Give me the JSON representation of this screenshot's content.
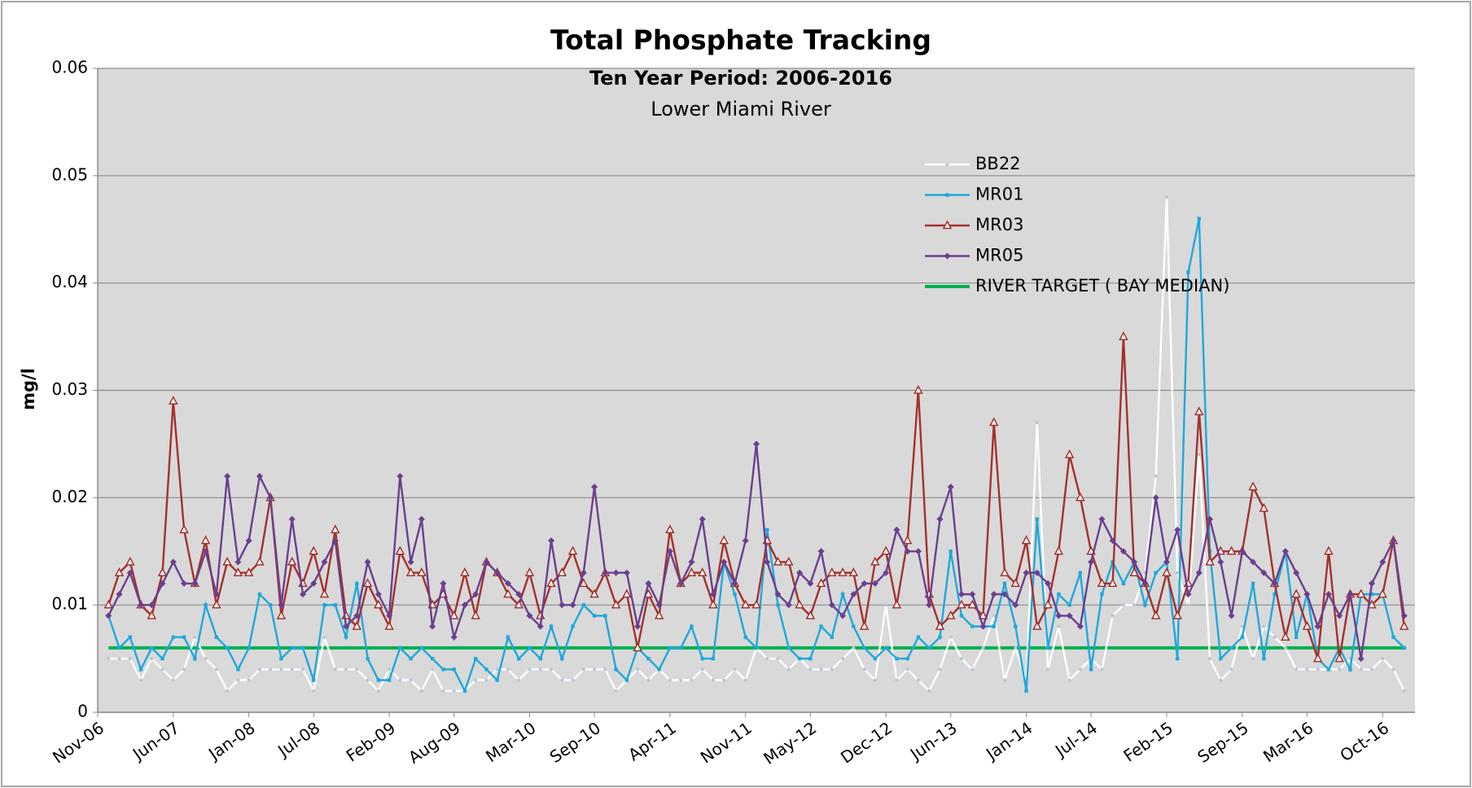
{
  "chart_data": {
    "type": "line",
    "title": "Total Phosphate Tracking",
    "subtitle": "Ten Year Period: 2006-2016",
    "subtitle2": "Lower Miami River",
    "ylabel": "mg/l",
    "ylim": [
      0,
      0.06
    ],
    "yticks": [
      0,
      0.01,
      0.02,
      0.03,
      0.04,
      0.05,
      0.06
    ],
    "grid": true,
    "legend": "top-right",
    "categories": [
      "Nov-06",
      null,
      null,
      null,
      null,
      null,
      null,
      "Jun-07",
      null,
      null,
      null,
      null,
      null,
      null,
      "Jan-08",
      null,
      null,
      null,
      null,
      null,
      "Jul-08",
      null,
      null,
      null,
      null,
      null,
      null,
      "Feb-09",
      null,
      null,
      null,
      null,
      null,
      "Aug-09",
      null,
      null,
      null,
      null,
      null,
      null,
      "Mar-10",
      null,
      null,
      null,
      null,
      null,
      "Sep-10",
      null,
      null,
      null,
      null,
      null,
      null,
      "Apr-11",
      null,
      null,
      null,
      null,
      null,
      null,
      "Nov-11",
      null,
      null,
      null,
      null,
      null,
      "May-12",
      null,
      null,
      null,
      null,
      null,
      null,
      "Dec-12",
      null,
      null,
      null,
      null,
      null,
      "Jun-13",
      null,
      null,
      null,
      null,
      null,
      null,
      "Jan-14",
      null,
      null,
      null,
      null,
      null,
      "Jul-14",
      null,
      null,
      null,
      null,
      null,
      null,
      "Feb-15",
      null,
      null,
      null,
      null,
      null,
      null,
      "Sep-15",
      null,
      null,
      null,
      null,
      null,
      "Mar-16",
      null,
      null,
      null,
      null,
      null,
      null,
      "Oct-16",
      null,
      null,
      null
    ],
    "series": [
      {
        "name": "BB22",
        "color": "#ffffff",
        "marker": "dot",
        "values": [
          null,
          0.005,
          0.005,
          0.005,
          0.003,
          0.005,
          0.004,
          0.003,
          0.004,
          0.007,
          0.005,
          0.004,
          0.002,
          0.003,
          0.003,
          0.004,
          0.004,
          0.004,
          0.004,
          0.004,
          0.002,
          0.007,
          0.004,
          0.004,
          0.004,
          0.003,
          0.002,
          0.004,
          0.003,
          0.003,
          0.002,
          0.004,
          0.002,
          0.002,
          0.002,
          0.003,
          0.003,
          0.004,
          0.004,
          0.003,
          0.004,
          0.004,
          0.004,
          0.003,
          0.003,
          0.004,
          0.004,
          0.004,
          0.002,
          0.003,
          0.004,
          0.003,
          0.004,
          0.003,
          0.003,
          0.003,
          0.004,
          0.003,
          0.003,
          0.004,
          0.003,
          0.006,
          0.005,
          0.005,
          0.004,
          0.005,
          0.004,
          0.004,
          0.004,
          0.005,
          0.006,
          0.004,
          0.003,
          0.01,
          0.003,
          0.004,
          0.003,
          0.002,
          0.004,
          0.007,
          0.005,
          0.004,
          0.006,
          0.009,
          0.003,
          0.006,
          0.003,
          0.027,
          0.004,
          0.008,
          0.003,
          0.004,
          0.005,
          0.004,
          0.009,
          0.01,
          0.01,
          0.013,
          0.022,
          0.048,
          0.013,
          0.01,
          0.024,
          0.005,
          0.003,
          0.004,
          0.008,
          0.005,
          0.008,
          0.007,
          0.006,
          0.004,
          0.004,
          0.004,
          0.004,
          0.004,
          0.005,
          0.004,
          0.004,
          0.005,
          0.004,
          0.002,
          null
        ]
      },
      {
        "name": "MR01",
        "color": "#1fa8dc",
        "marker": "square",
        "values": [
          null,
          0.009,
          0.006,
          0.007,
          0.004,
          0.006,
          0.005,
          0.007,
          0.007,
          0.005,
          0.01,
          0.007,
          0.006,
          0.004,
          0.006,
          0.011,
          0.01,
          0.005,
          0.006,
          0.006,
          0.003,
          0.01,
          0.01,
          0.007,
          0.012,
          0.005,
          0.003,
          0.003,
          0.006,
          0.005,
          0.006,
          0.005,
          0.004,
          0.004,
          0.002,
          0.005,
          0.004,
          0.003,
          0.007,
          0.005,
          0.006,
          0.005,
          0.008,
          0.005,
          0.008,
          0.01,
          0.009,
          0.009,
          0.004,
          0.003,
          0.006,
          0.005,
          0.004,
          0.006,
          0.006,
          0.008,
          0.005,
          0.005,
          0.014,
          0.011,
          0.007,
          0.006,
          0.017,
          0.01,
          0.006,
          0.005,
          0.005,
          0.008,
          0.007,
          0.011,
          0.008,
          0.006,
          0.005,
          0.006,
          0.005,
          0.005,
          0.007,
          0.006,
          0.007,
          0.015,
          0.009,
          0.008,
          0.008,
          0.008,
          0.012,
          0.008,
          0.002,
          0.018,
          0.006,
          0.011,
          0.01,
          0.013,
          0.004,
          0.011,
          0.014,
          0.012,
          0.014,
          0.01,
          0.013,
          0.014,
          0.005,
          0.041,
          0.046,
          0.015,
          0.005,
          0.006,
          0.007,
          0.012,
          0.005,
          0.011,
          0.015,
          0.007,
          0.011,
          0.005,
          0.004,
          0.006,
          0.004,
          0.011,
          0.011,
          0.011,
          0.007,
          0.006,
          null
        ]
      },
      {
        "name": "MR03",
        "color": "#a5302b",
        "marker": "triangle",
        "values": [
          null,
          0.01,
          0.013,
          0.014,
          0.01,
          0.009,
          0.013,
          0.029,
          0.017,
          0.012,
          0.016,
          0.01,
          0.014,
          0.013,
          0.013,
          0.014,
          0.02,
          0.009,
          0.014,
          0.012,
          0.015,
          0.011,
          0.017,
          0.009,
          0.008,
          0.012,
          0.01,
          0.008,
          0.015,
          0.013,
          0.013,
          0.01,
          0.011,
          0.009,
          0.013,
          0.009,
          0.014,
          0.013,
          0.011,
          0.01,
          0.013,
          0.009,
          0.012,
          0.013,
          0.015,
          0.012,
          0.011,
          0.013,
          0.01,
          0.011,
          0.006,
          0.011,
          0.009,
          0.017,
          0.012,
          0.013,
          0.013,
          0.01,
          0.016,
          0.012,
          0.01,
          0.01,
          0.016,
          0.014,
          0.014,
          0.01,
          0.009,
          0.012,
          0.013,
          0.013,
          0.013,
          0.008,
          0.014,
          0.015,
          0.01,
          0.016,
          0.03,
          0.011,
          0.008,
          0.009,
          0.01,
          0.01,
          0.009,
          0.027,
          0.013,
          0.012,
          0.016,
          0.008,
          0.01,
          0.015,
          0.024,
          0.02,
          0.015,
          0.012,
          0.012,
          0.035,
          0.013,
          0.012,
          0.009,
          0.013,
          0.009,
          0.012,
          0.028,
          0.014,
          0.015,
          0.015,
          0.015,
          0.021,
          0.019,
          0.012,
          0.007,
          0.011,
          0.008,
          0.005,
          0.015,
          0.005,
          0.011,
          0.011,
          0.01,
          0.011,
          0.016,
          0.008,
          null
        ]
      },
      {
        "name": "MR05",
        "color": "#6a3f8f",
        "marker": "diamond",
        "values": [
          null,
          0.009,
          0.011,
          0.013,
          0.01,
          0.01,
          0.012,
          0.014,
          0.012,
          0.012,
          0.015,
          0.011,
          0.022,
          0.014,
          0.016,
          0.022,
          0.02,
          0.01,
          0.018,
          0.011,
          0.012,
          0.014,
          0.016,
          0.008,
          0.009,
          0.014,
          0.011,
          0.009,
          0.022,
          0.014,
          0.018,
          0.008,
          0.012,
          0.007,
          0.01,
          0.011,
          0.014,
          0.013,
          0.012,
          0.011,
          0.009,
          0.008,
          0.016,
          0.01,
          0.01,
          0.013,
          0.021,
          0.013,
          0.013,
          0.013,
          0.008,
          0.012,
          0.01,
          0.015,
          0.012,
          0.014,
          0.018,
          0.011,
          0.014,
          0.012,
          0.016,
          0.025,
          0.014,
          0.011,
          0.01,
          0.013,
          0.012,
          0.015,
          0.01,
          0.009,
          0.011,
          0.012,
          0.012,
          0.013,
          0.017,
          0.015,
          0.015,
          0.01,
          0.018,
          0.021,
          0.011,
          0.011,
          0.008,
          0.011,
          0.011,
          0.01,
          0.013,
          0.013,
          0.012,
          0.009,
          0.009,
          0.008,
          0.014,
          0.018,
          0.016,
          0.015,
          0.014,
          0.012,
          0.02,
          0.014,
          0.017,
          0.011,
          0.013,
          0.018,
          0.014,
          0.009,
          0.015,
          0.014,
          0.013,
          0.012,
          0.015,
          0.013,
          0.011,
          0.008,
          0.011,
          0.009,
          0.011,
          0.005,
          0.012,
          0.014,
          0.016,
          0.009,
          null
        ]
      }
    ],
    "target_line": {
      "name": "RIVER TARGET ( BAY MEDIAN)",
      "value": 0.006,
      "color": "#00b050"
    }
  }
}
